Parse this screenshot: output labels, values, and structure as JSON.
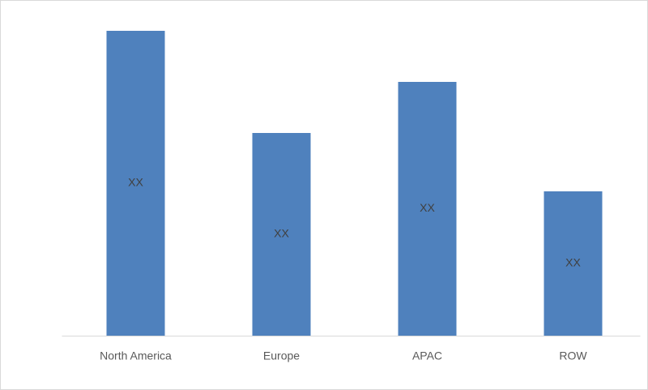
{
  "chart_data": {
    "type": "bar",
    "categories": [
      "North America",
      "Europe",
      "APAC",
      "ROW"
    ],
    "values": [
      376,
      250,
      313,
      178
    ],
    "value_labels": [
      "XX",
      "XX",
      "XX",
      "XX"
    ],
    "color": "#4f81bd",
    "ylim": [
      0,
      400
    ]
  }
}
